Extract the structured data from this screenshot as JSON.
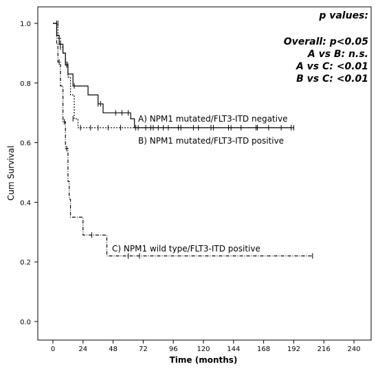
{
  "chart_data": {
    "type": "line",
    "subtype": "kaplan-meier",
    "title": "",
    "xlabel": "Time (months)",
    "ylabel": "Cum Survival",
    "xlim": [
      0,
      240
    ],
    "ylim": [
      0.0,
      1.0
    ],
    "x_ticks": [
      0,
      24,
      48,
      72,
      96,
      120,
      144,
      168,
      192,
      216,
      240
    ],
    "y_ticks": [
      "0.0",
      "0.2",
      "0.4",
      "0.6",
      "0.8",
      "1.0"
    ],
    "grid": false,
    "series": [
      {
        "name": "A) NPM1 mutated/FLT3-ITD negative",
        "line_style": "solid",
        "steps": [
          [
            0,
            1.0
          ],
          [
            3,
            0.96
          ],
          [
            5,
            0.93
          ],
          [
            8,
            0.9
          ],
          [
            10,
            0.86
          ],
          [
            12,
            0.83
          ],
          [
            16,
            0.79
          ],
          [
            28,
            0.76
          ],
          [
            36,
            0.73
          ],
          [
            40,
            0.7
          ],
          [
            62,
            0.68
          ],
          [
            65,
            0.65
          ],
          [
            192,
            0.65
          ]
        ],
        "censored": [
          [
            4,
            1.0
          ],
          [
            6,
            0.93
          ],
          [
            11,
            0.86
          ],
          [
            17,
            0.79
          ],
          [
            36,
            0.73
          ],
          [
            38,
            0.73
          ],
          [
            50,
            0.7
          ],
          [
            55,
            0.7
          ],
          [
            60,
            0.7
          ],
          [
            68,
            0.65
          ],
          [
            74,
            0.65
          ],
          [
            78,
            0.65
          ],
          [
            84,
            0.65
          ],
          [
            92,
            0.65
          ],
          [
            100,
            0.65
          ],
          [
            112,
            0.65
          ],
          [
            126,
            0.65
          ],
          [
            140,
            0.65
          ],
          [
            150,
            0.65
          ],
          [
            163,
            0.65
          ],
          [
            172,
            0.65
          ],
          [
            182,
            0.65
          ],
          [
            192,
            0.65
          ]
        ]
      },
      {
        "name": "B) NPM1 mutated/FLT3-ITD positive",
        "line_style": "dotted",
        "steps": [
          [
            0,
            1.0
          ],
          [
            4,
            0.95
          ],
          [
            6,
            0.92
          ],
          [
            8,
            0.9
          ],
          [
            10,
            0.87
          ],
          [
            12,
            0.82
          ],
          [
            14,
            0.76
          ],
          [
            17,
            0.68
          ],
          [
            20,
            0.65
          ],
          [
            190,
            0.65
          ]
        ],
        "censored": [
          [
            3,
            1.0
          ],
          [
            6,
            0.92
          ],
          [
            10,
            0.87
          ],
          [
            16,
            0.68
          ],
          [
            22,
            0.65
          ],
          [
            30,
            0.65
          ],
          [
            36,
            0.65
          ],
          [
            44,
            0.65
          ],
          [
            54,
            0.65
          ],
          [
            66,
            0.65
          ],
          [
            80,
            0.65
          ],
          [
            88,
            0.65
          ],
          [
            102,
            0.65
          ],
          [
            116,
            0.65
          ],
          [
            128,
            0.65
          ],
          [
            142,
            0.65
          ],
          [
            162,
            0.65
          ],
          [
            190,
            0.65
          ]
        ]
      },
      {
        "name": "C) NPM1 wild type/FLT3-ITD positive",
        "line_style": "dash-dot",
        "steps": [
          [
            0,
            1.0
          ],
          [
            3,
            0.93
          ],
          [
            4,
            0.87
          ],
          [
            6,
            0.79
          ],
          [
            8,
            0.67
          ],
          [
            10,
            0.58
          ],
          [
            12,
            0.47
          ],
          [
            13,
            0.41
          ],
          [
            14,
            0.35
          ],
          [
            24,
            0.29
          ],
          [
            43,
            0.22
          ],
          [
            207,
            0.22
          ]
        ],
        "censored": [
          [
            5,
            0.87
          ],
          [
            9,
            0.67
          ],
          [
            11,
            0.58
          ],
          [
            31,
            0.29
          ],
          [
            60,
            0.22
          ],
          [
            69,
            0.22
          ],
          [
            207,
            0.22
          ]
        ]
      }
    ],
    "annotations": [
      "p values:",
      "Overall: p<0.05",
      "A vs B: n.s.",
      "A vs C: <0.01",
      "B vs C: <0.01"
    ]
  }
}
